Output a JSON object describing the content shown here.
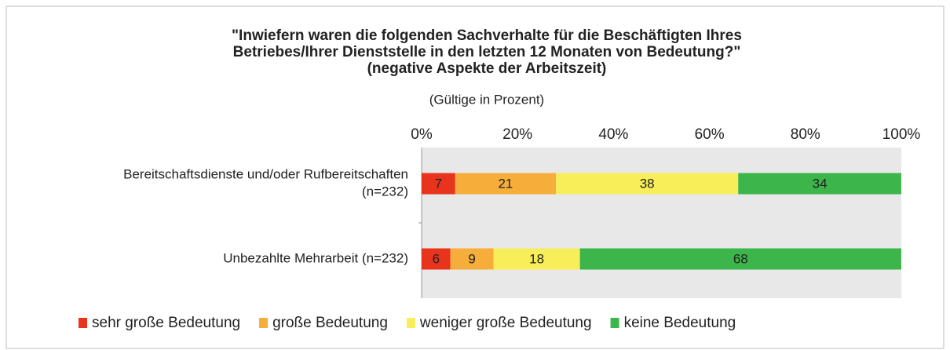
{
  "chart_data": {
    "type": "stacked_bar_horizontal",
    "title": [
      "\"Inwiefern waren die folgenden Sachverhalte für die Beschäftigten Ihres",
      "Betriebes/Ihrer Dienststelle in den letzten 12 Monaten von Bedeutung?\"",
      "(negative Aspekte der Arbeitszeit)"
    ],
    "subtitle": "(Gültige in Prozent)",
    "categories": [
      [
        "Bereitschaftsdienste und/oder Rufbereitschaften",
        "(n=232)"
      ],
      [
        "Unbezahlte Mehrarbeit (n=232)"
      ]
    ],
    "series": [
      {
        "name": "sehr große Bedeutung",
        "color": "#e8341c",
        "values": [
          7,
          6
        ]
      },
      {
        "name": "große Bedeutung",
        "color": "#f6ad3a",
        "values": [
          21,
          9
        ]
      },
      {
        "name": "weniger große Bedeutung",
        "color": "#f7ee5a",
        "values": [
          38,
          18
        ]
      },
      {
        "name": "keine Bedeutung",
        "color": "#3cb54a",
        "values": [
          34,
          68
        ]
      }
    ],
    "xlim": [
      0,
      100
    ],
    "xticks": [
      {
        "value": 0,
        "label": "0%"
      },
      {
        "value": 20,
        "label": "20%"
      },
      {
        "value": 40,
        "label": "40%"
      },
      {
        "value": 60,
        "label": "60%"
      },
      {
        "value": 80,
        "label": "80%"
      },
      {
        "value": 100,
        "label": "100%"
      }
    ],
    "legend": "bottom"
  }
}
